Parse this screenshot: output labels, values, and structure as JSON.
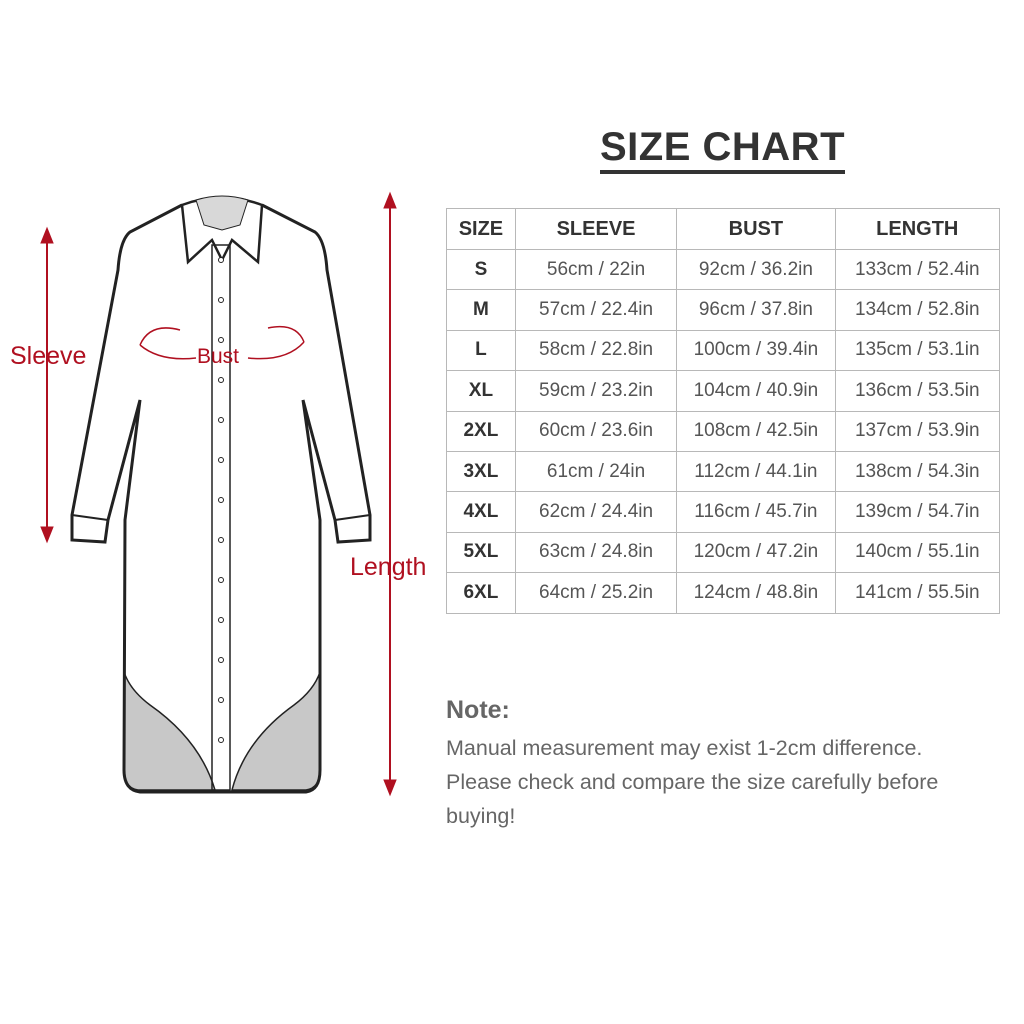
{
  "title": "SIZE CHART",
  "labels": {
    "sleeve": "Sleeve",
    "bust": "Bust",
    "length": "Length"
  },
  "colors": {
    "accent": "#b01020",
    "text": "#333333",
    "border": "#b8b8b8",
    "hem": "#c8c8c8"
  },
  "table": {
    "headers": [
      "SIZE",
      "SLEEVE",
      "BUST",
      "LENGTH"
    ],
    "rows": [
      [
        "S",
        "56cm / 22in",
        "92cm / 36.2in",
        "133cm / 52.4in"
      ],
      [
        "M",
        "57cm / 22.4in",
        "96cm / 37.8in",
        "134cm / 52.8in"
      ],
      [
        "L",
        "58cm / 22.8in",
        "100cm / 39.4in",
        "135cm / 53.1in"
      ],
      [
        "XL",
        "59cm / 23.2in",
        "104cm / 40.9in",
        "136cm / 53.5in"
      ],
      [
        "2XL",
        "60cm / 23.6in",
        "108cm / 42.5in",
        "137cm / 53.9in"
      ],
      [
        "3XL",
        "61cm / 24in",
        "112cm / 44.1in",
        "138cm / 54.3in"
      ],
      [
        "4XL",
        "62cm / 24.4in",
        "116cm / 45.7in",
        "139cm / 54.7in"
      ],
      [
        "5XL",
        "63cm / 24.8in",
        "120cm / 47.2in",
        "140cm / 55.1in"
      ],
      [
        "6XL",
        "64cm / 25.2in",
        "124cm / 48.8in",
        "141cm / 55.5in"
      ]
    ]
  },
  "note": {
    "title": "Note:",
    "lines": [
      "Manual measurement may exist 1-2cm difference.",
      "Please check and compare the size carefully before",
      "buying!"
    ]
  }
}
